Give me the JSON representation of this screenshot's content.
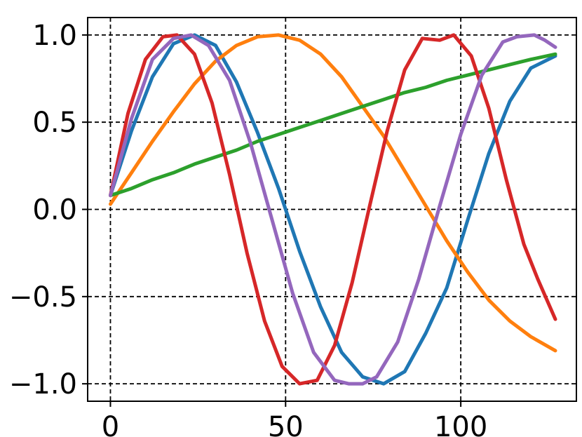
{
  "chart_data": {
    "type": "line",
    "title": "",
    "xlabel": "",
    "ylabel": "",
    "xlim": [
      -6.5,
      133
    ],
    "ylim": [
      -1.1,
      1.1
    ],
    "x_ticks": [
      0,
      50,
      100
    ],
    "x_tick_labels": [
      "0",
      "50",
      "100"
    ],
    "y_ticks": [
      1.0,
      0.5,
      0.0,
      -0.5,
      -1.0
    ],
    "y_tick_labels": [
      "1.0",
      "0.5",
      "0.0",
      "−0.5",
      "−1.0"
    ],
    "grid": true,
    "grid_style": "dashed",
    "legend": false,
    "series": [
      {
        "color": "#1f77b4",
        "x": [
          0,
          6,
          12,
          18,
          24,
          30,
          36,
          42,
          48,
          54,
          60,
          66,
          72,
          78,
          84,
          90,
          96,
          102,
          108,
          114,
          120,
          127
        ],
        "y": [
          0.08,
          0.45,
          0.76,
          0.95,
          1.0,
          0.94,
          0.73,
          0.44,
          0.12,
          -0.24,
          -0.56,
          -0.82,
          -0.96,
          -1.0,
          -0.93,
          -0.71,
          -0.45,
          -0.06,
          0.32,
          0.62,
          0.81,
          0.88
        ]
      },
      {
        "color": "#ff7f0e",
        "x": [
          0,
          6,
          12,
          18,
          24,
          30,
          36,
          42,
          48,
          54,
          60,
          66,
          72,
          78,
          84,
          90,
          96,
          102,
          108,
          114,
          120,
          127
        ],
        "y": [
          0.03,
          0.21,
          0.39,
          0.56,
          0.72,
          0.85,
          0.94,
          0.99,
          1.0,
          0.97,
          0.89,
          0.76,
          0.59,
          0.42,
          0.22,
          0.02,
          -0.18,
          -0.36,
          -0.52,
          -0.64,
          -0.73,
          -0.81
        ]
      },
      {
        "color": "#2ca02c",
        "x": [
          0,
          6,
          12,
          18,
          24,
          30,
          36,
          42,
          48,
          54,
          60,
          66,
          72,
          78,
          84,
          90,
          96,
          102,
          108,
          114,
          120,
          127
        ],
        "y": [
          0.08,
          0.12,
          0.17,
          0.21,
          0.26,
          0.3,
          0.34,
          0.39,
          0.43,
          0.47,
          0.51,
          0.55,
          0.59,
          0.63,
          0.67,
          0.7,
          0.74,
          0.77,
          0.8,
          0.83,
          0.86,
          0.89
        ]
      },
      {
        "color": "#d62728",
        "x": [
          0,
          5,
          10,
          15,
          19,
          24,
          29,
          34,
          39,
          44,
          49,
          54,
          59,
          64,
          69,
          74,
          79,
          84,
          89,
          94,
          98,
          103,
          108,
          113,
          118,
          122,
          127
        ],
        "y": [
          0.08,
          0.55,
          0.86,
          0.99,
          1.0,
          0.89,
          0.61,
          0.2,
          -0.25,
          -0.64,
          -0.9,
          -1.0,
          -0.98,
          -0.78,
          -0.42,
          0.02,
          0.45,
          0.8,
          0.98,
          0.97,
          1.0,
          0.88,
          0.58,
          0.17,
          -0.2,
          -0.4,
          -0.63
        ]
      },
      {
        "color": "#9467bd",
        "x": [
          0,
          6,
          12,
          18,
          23,
          28,
          34,
          40,
          46,
          52,
          58,
          64,
          68,
          72,
          76,
          82,
          88,
          94,
          100,
          106,
          112,
          116,
          121,
          124,
          127
        ],
        "y": [
          0.08,
          0.52,
          0.86,
          0.98,
          1.0,
          0.94,
          0.74,
          0.38,
          -0.05,
          -0.48,
          -0.82,
          -0.98,
          -1.0,
          -1.0,
          -0.96,
          -0.76,
          -0.4,
          0.02,
          0.43,
          0.77,
          0.96,
          0.99,
          1.0,
          0.97,
          0.93
        ]
      }
    ]
  }
}
